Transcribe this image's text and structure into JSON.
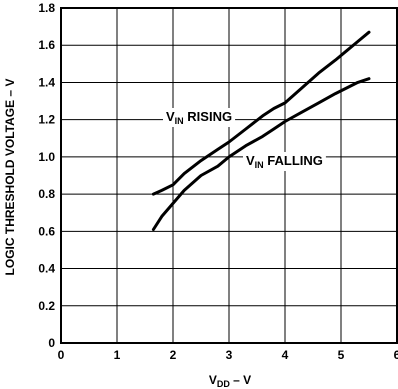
{
  "chart_data": {
    "type": "line",
    "xlabel": {
      "main": "V",
      "sub": "DD",
      "suffix": " – V"
    },
    "ylabel": "LOGIC THRESHOLD VOLTAGE – V",
    "xlim": [
      0,
      6
    ],
    "ylim": [
      0,
      1.8
    ],
    "x_ticks": [
      "0",
      "1",
      "2",
      "3",
      "4",
      "5",
      "6"
    ],
    "y_ticks": [
      "0",
      "0.2",
      "0.4",
      "0.6",
      "0.8",
      "1.0",
      "1.2",
      "1.4",
      "1.6",
      "1.8"
    ],
    "grid": true,
    "series": [
      {
        "name": "V_IN RISING",
        "label": {
          "main": "V",
          "sub": "IN",
          "suffix": " RISING"
        },
        "x": [
          1.65,
          1.8,
          2.0,
          2.2,
          2.5,
          2.8,
          3.0,
          3.3,
          3.6,
          3.8,
          4.0,
          4.3,
          4.6,
          4.9,
          5.1,
          5.3,
          5.5
        ],
        "y": [
          0.8,
          0.82,
          0.85,
          0.91,
          0.98,
          1.04,
          1.08,
          1.15,
          1.22,
          1.26,
          1.29,
          1.37,
          1.45,
          1.52,
          1.57,
          1.62,
          1.67
        ]
      },
      {
        "name": "V_IN FALLING",
        "label": {
          "main": "V",
          "sub": "IN",
          "suffix": " FALLING"
        },
        "x": [
          1.65,
          1.8,
          2.0,
          2.2,
          2.5,
          2.8,
          3.0,
          3.3,
          3.6,
          3.8,
          4.0,
          4.3,
          4.6,
          4.9,
          5.1,
          5.3,
          5.5
        ],
        "y": [
          0.61,
          0.68,
          0.75,
          0.82,
          0.9,
          0.95,
          1.0,
          1.06,
          1.11,
          1.15,
          1.19,
          1.24,
          1.29,
          1.34,
          1.37,
          1.4,
          1.42
        ]
      }
    ]
  }
}
